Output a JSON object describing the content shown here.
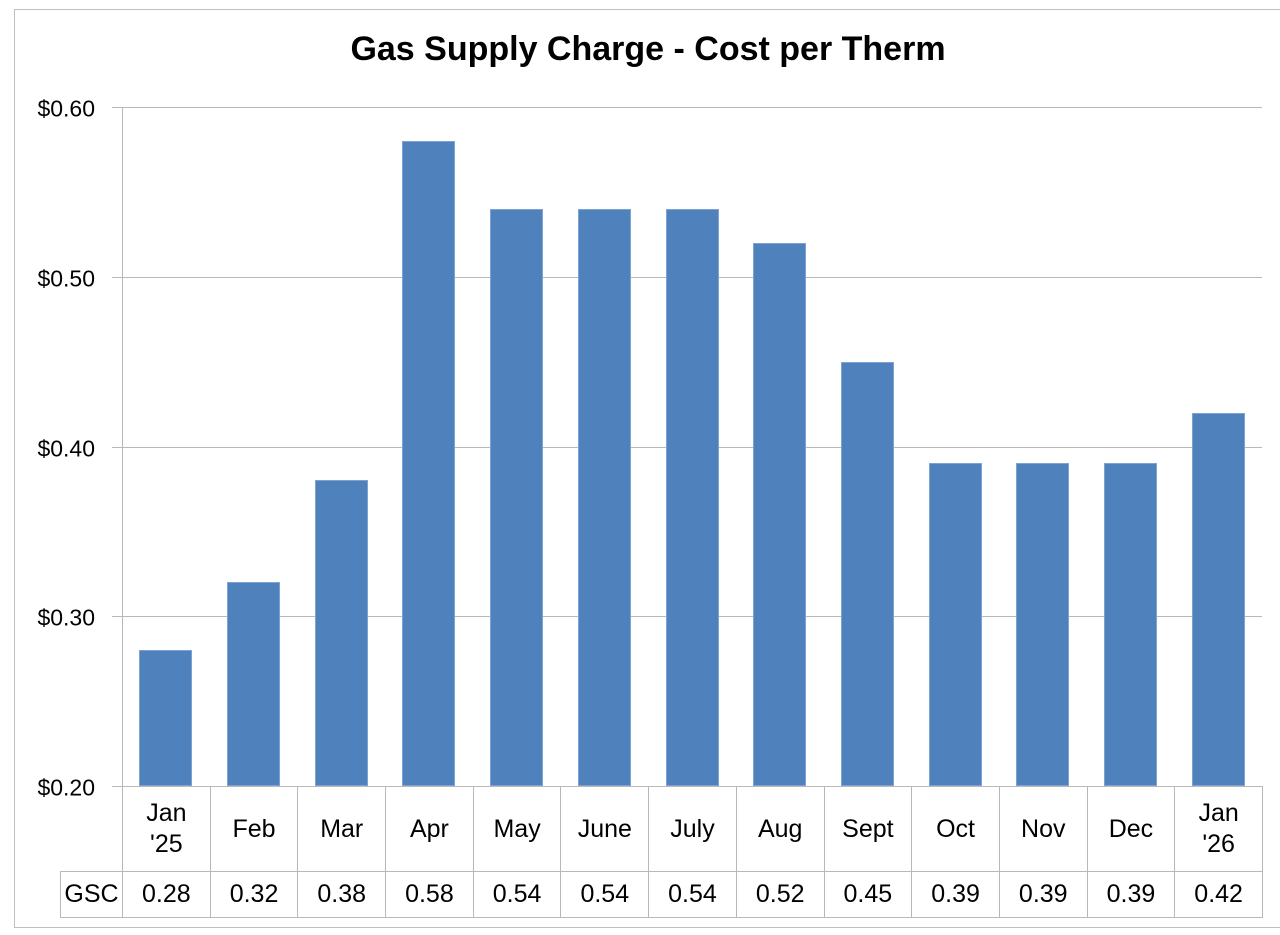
{
  "chart_data": {
    "type": "bar",
    "title": "Gas Supply Charge - Cost per Therm",
    "xlabel": "",
    "ylabel": "",
    "ylim": [
      0.2,
      0.6
    ],
    "yticks": [
      "$0.60",
      "$0.50",
      "$0.40",
      "$0.30",
      "$0.20"
    ],
    "grid": true,
    "legend_position": "data-table",
    "categories": [
      "Jan\n'25",
      "Feb",
      "Mar",
      "Apr",
      "May",
      "June",
      "July",
      "Aug",
      "Sept",
      "Oct",
      "Nov",
      "Dec",
      "Jan\n'26"
    ],
    "series": [
      {
        "name": "GSC",
        "color": "#4f81bd",
        "values": [
          0.28,
          0.32,
          0.38,
          0.58,
          0.54,
          0.54,
          0.54,
          0.52,
          0.45,
          0.39,
          0.39,
          0.39,
          0.42
        ]
      }
    ],
    "data_table": {
      "row_label": "GSC",
      "values": [
        "0.28",
        "0.32",
        "0.38",
        "0.58",
        "0.54",
        "0.54",
        "0.54",
        "0.52",
        "0.45",
        "0.39",
        "0.39",
        "0.39",
        "0.42"
      ]
    }
  }
}
